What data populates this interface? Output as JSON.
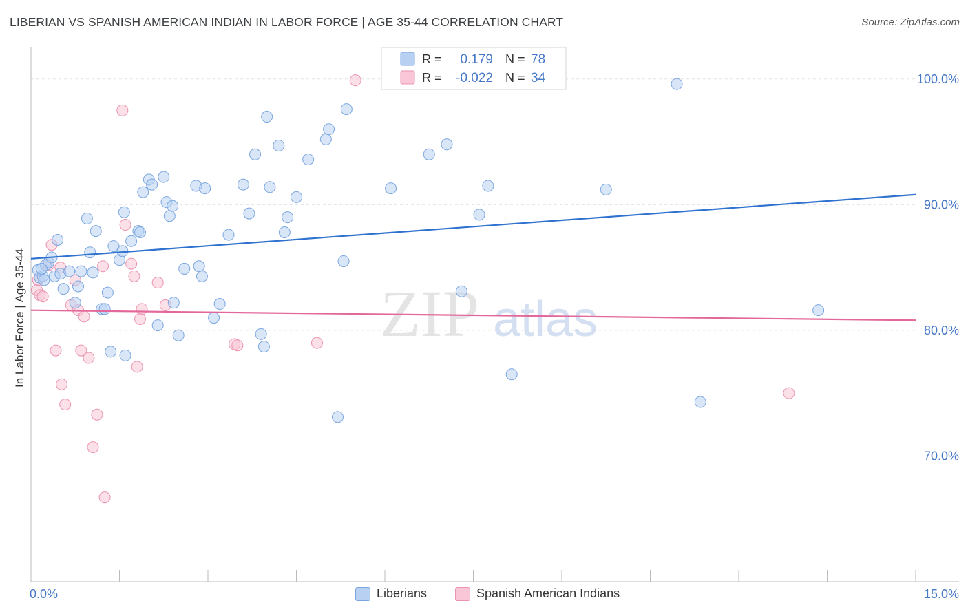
{
  "header": {
    "title": "LIBERIAN VS SPANISH AMERICAN INDIAN IN LABOR FORCE | AGE 35-44 CORRELATION CHART",
    "source": "Source: ZipAtlas.com"
  },
  "watermark": {
    "zip": "ZIP",
    "atlas": "atlas"
  },
  "colors": {
    "blue_fill": "#b8d1f3",
    "blue_stroke": "#7ba6e0",
    "blue_line": "#2f72cf",
    "pink_fill": "#f8c6d6",
    "pink_stroke": "#eb93b1",
    "pink_line": "#e3679a",
    "axis_text": "#4678c8",
    "grid": "#e3e3e3"
  },
  "chart_data": {
    "type": "scatter",
    "title": "LIBERIAN VS SPANISH AMERICAN INDIAN IN LABOR FORCE | AGE 35-44 CORRELATION CHART",
    "xlabel": "",
    "ylabel": "In Labor Force | Age 35-44",
    "xlim": [
      0,
      15
    ],
    "ylim": [
      60,
      103
    ],
    "x_tick_labels": [
      {
        "value": 0,
        "label": "0.0%"
      },
      {
        "value": 15,
        "label": "15.0%"
      }
    ],
    "x_minor_ticks": [
      1.5,
      3.0,
      4.5,
      6.0,
      7.5,
      9.0,
      10.5,
      12.0,
      13.5,
      15.0
    ],
    "y_ticks": [
      {
        "value": 100,
        "label": "100.0%"
      },
      {
        "value": 90,
        "label": "90.0%"
      },
      {
        "value": 80,
        "label": "80.0%"
      },
      {
        "value": 70,
        "label": "70.0%"
      }
    ],
    "legend_stats": [
      {
        "series": "Liberians",
        "r_label": "R =",
        "r_value": "0.179",
        "n_label": "N =",
        "n_value": "78"
      },
      {
        "series": "Spanish American Indians",
        "r_label": "R =",
        "r_value": "-0.022",
        "n_label": "N =",
        "n_value": "34"
      }
    ],
    "series": [
      {
        "name": "Liberians",
        "trend": {
          "x": [
            0,
            15
          ],
          "y": [
            85.7,
            90.8
          ]
        },
        "points": [
          [
            0.12,
            84.8
          ],
          [
            0.15,
            84.2
          ],
          [
            0.2,
            84.3
          ],
          [
            0.25,
            85.2
          ],
          [
            0.3,
            85.4
          ],
          [
            0.35,
            85.8
          ],
          [
            0.4,
            84.3
          ],
          [
            0.45,
            87.2
          ],
          [
            0.5,
            84.5
          ],
          [
            0.55,
            83.3
          ],
          [
            0.65,
            84.7
          ],
          [
            0.75,
            82.2
          ],
          [
            0.8,
            83.5
          ],
          [
            0.85,
            84.7
          ],
          [
            0.95,
            88.9
          ],
          [
            1.0,
            86.2
          ],
          [
            1.05,
            84.6
          ],
          [
            1.1,
            87.9
          ],
          [
            1.2,
            81.7
          ],
          [
            1.25,
            81.7
          ],
          [
            1.3,
            83.0
          ],
          [
            1.35,
            78.3
          ],
          [
            1.4,
            86.7
          ],
          [
            1.5,
            85.6
          ],
          [
            1.55,
            86.3
          ],
          [
            1.58,
            89.4
          ],
          [
            1.6,
            78.0
          ],
          [
            1.7,
            87.1
          ],
          [
            1.82,
            87.9
          ],
          [
            1.85,
            87.8
          ],
          [
            1.9,
            91.0
          ],
          [
            2.0,
            92.0
          ],
          [
            2.05,
            91.6
          ],
          [
            2.15,
            80.4
          ],
          [
            2.25,
            92.2
          ],
          [
            2.3,
            90.2
          ],
          [
            2.35,
            89.1
          ],
          [
            2.4,
            89.9
          ],
          [
            2.42,
            82.2
          ],
          [
            2.5,
            79.6
          ],
          [
            2.6,
            84.9
          ],
          [
            2.8,
            91.5
          ],
          [
            2.85,
            85.1
          ],
          [
            2.9,
            84.3
          ],
          [
            2.95,
            91.3
          ],
          [
            3.1,
            81.0
          ],
          [
            3.2,
            82.1
          ],
          [
            3.35,
            87.6
          ],
          [
            3.6,
            91.6
          ],
          [
            3.7,
            89.3
          ],
          [
            3.8,
            94.0
          ],
          [
            3.9,
            79.7
          ],
          [
            3.95,
            78.7
          ],
          [
            4.0,
            97.0
          ],
          [
            4.05,
            91.4
          ],
          [
            4.2,
            94.7
          ],
          [
            4.3,
            87.8
          ],
          [
            4.35,
            89.0
          ],
          [
            4.5,
            90.6
          ],
          [
            4.7,
            93.6
          ],
          [
            5.0,
            95.2
          ],
          [
            5.05,
            96.0
          ],
          [
            5.2,
            73.1
          ],
          [
            5.3,
            85.5
          ],
          [
            5.35,
            97.6
          ],
          [
            6.1,
            91.3
          ],
          [
            6.75,
            94.0
          ],
          [
            7.05,
            94.8
          ],
          [
            7.3,
            83.1
          ],
          [
            7.6,
            89.2
          ],
          [
            7.75,
            91.5
          ],
          [
            8.15,
            76.5
          ],
          [
            9.75,
            91.2
          ],
          [
            10.95,
            99.6
          ],
          [
            11.35,
            74.3
          ],
          [
            13.35,
            81.6
          ],
          [
            0.18,
            84.9
          ],
          [
            0.22,
            84.0
          ]
        ]
      },
      {
        "name": "Spanish American Indians",
        "trend": {
          "x": [
            0,
            15
          ],
          "y": [
            81.6,
            80.8
          ]
        },
        "points": [
          [
            0.1,
            83.2
          ],
          [
            0.12,
            84.0
          ],
          [
            0.15,
            82.8
          ],
          [
            0.2,
            82.7
          ],
          [
            0.3,
            85.2
          ],
          [
            0.35,
            86.8
          ],
          [
            0.42,
            78.4
          ],
          [
            0.5,
            85.0
          ],
          [
            0.52,
            75.7
          ],
          [
            0.58,
            74.1
          ],
          [
            0.68,
            82.0
          ],
          [
            0.75,
            84.0
          ],
          [
            0.8,
            81.6
          ],
          [
            0.85,
            78.4
          ],
          [
            0.9,
            81.1
          ],
          [
            0.98,
            77.8
          ],
          [
            1.05,
            70.7
          ],
          [
            1.12,
            73.3
          ],
          [
            1.22,
            85.1
          ],
          [
            1.25,
            66.7
          ],
          [
            1.55,
            97.5
          ],
          [
            1.6,
            88.4
          ],
          [
            1.7,
            85.3
          ],
          [
            1.75,
            84.3
          ],
          [
            1.8,
            77.1
          ],
          [
            1.85,
            80.9
          ],
          [
            1.88,
            81.7
          ],
          [
            2.15,
            83.8
          ],
          [
            2.28,
            82.0
          ],
          [
            3.45,
            78.9
          ],
          [
            3.5,
            78.8
          ],
          [
            4.85,
            79.0
          ],
          [
            5.5,
            99.9
          ],
          [
            12.85,
            75.0
          ]
        ]
      }
    ]
  }
}
